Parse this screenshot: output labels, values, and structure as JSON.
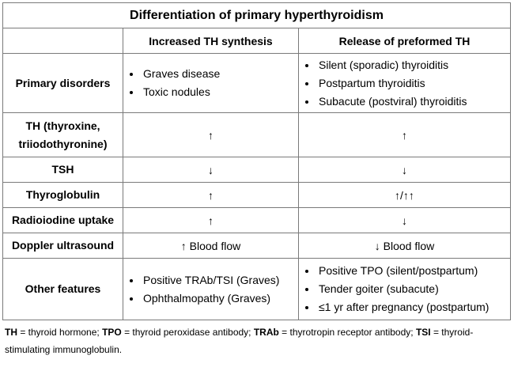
{
  "title": "Differentiation of primary hyperthyroidism",
  "columns": [
    "Increased TH synthesis",
    "Release of preformed TH"
  ],
  "rows": [
    {
      "label": "Primary disorders",
      "col1": [
        "Graves disease",
        "Toxic nodules"
      ],
      "col2": [
        "Silent (sporadic) thyroiditis",
        "Postpartum thyroiditis",
        "Subacute (postviral) thyroiditis"
      ]
    },
    {
      "label": "TH (thyroxine, triiodothyronine)",
      "col1": "↑",
      "col2": "↑"
    },
    {
      "label": "TSH",
      "col1": "↓",
      "col2": "↓"
    },
    {
      "label": "Thyroglobulin",
      "col1": "↑",
      "col2": "↑/↑↑"
    },
    {
      "label": "Radioiodine uptake",
      "col1": "↑",
      "col2": "↓"
    },
    {
      "label": "Doppler ultrasound",
      "col1": "↑ Blood flow",
      "col2": "↓ Blood flow"
    },
    {
      "label": "Other features",
      "col1": [
        "Positive TRAb/TSI (Graves)",
        "Ophthalmopathy (Graves)"
      ],
      "col2": [
        "Positive TPO (silent/postpartum)",
        "Tender goiter (subacute)",
        "≤1 yr after pregnancy (postpartum)"
      ]
    }
  ],
  "footnote": [
    {
      "abbr": "TH",
      "def": " = thyroid hormone; "
    },
    {
      "abbr": "TPO",
      "def": " = thyroid peroxidase antibody; "
    },
    {
      "abbr": "TRAb",
      "def": " = thyrotropin receptor antibody; "
    },
    {
      "abbr": "TSI",
      "def": " = thyroid-stimulating immunoglobulin."
    }
  ]
}
